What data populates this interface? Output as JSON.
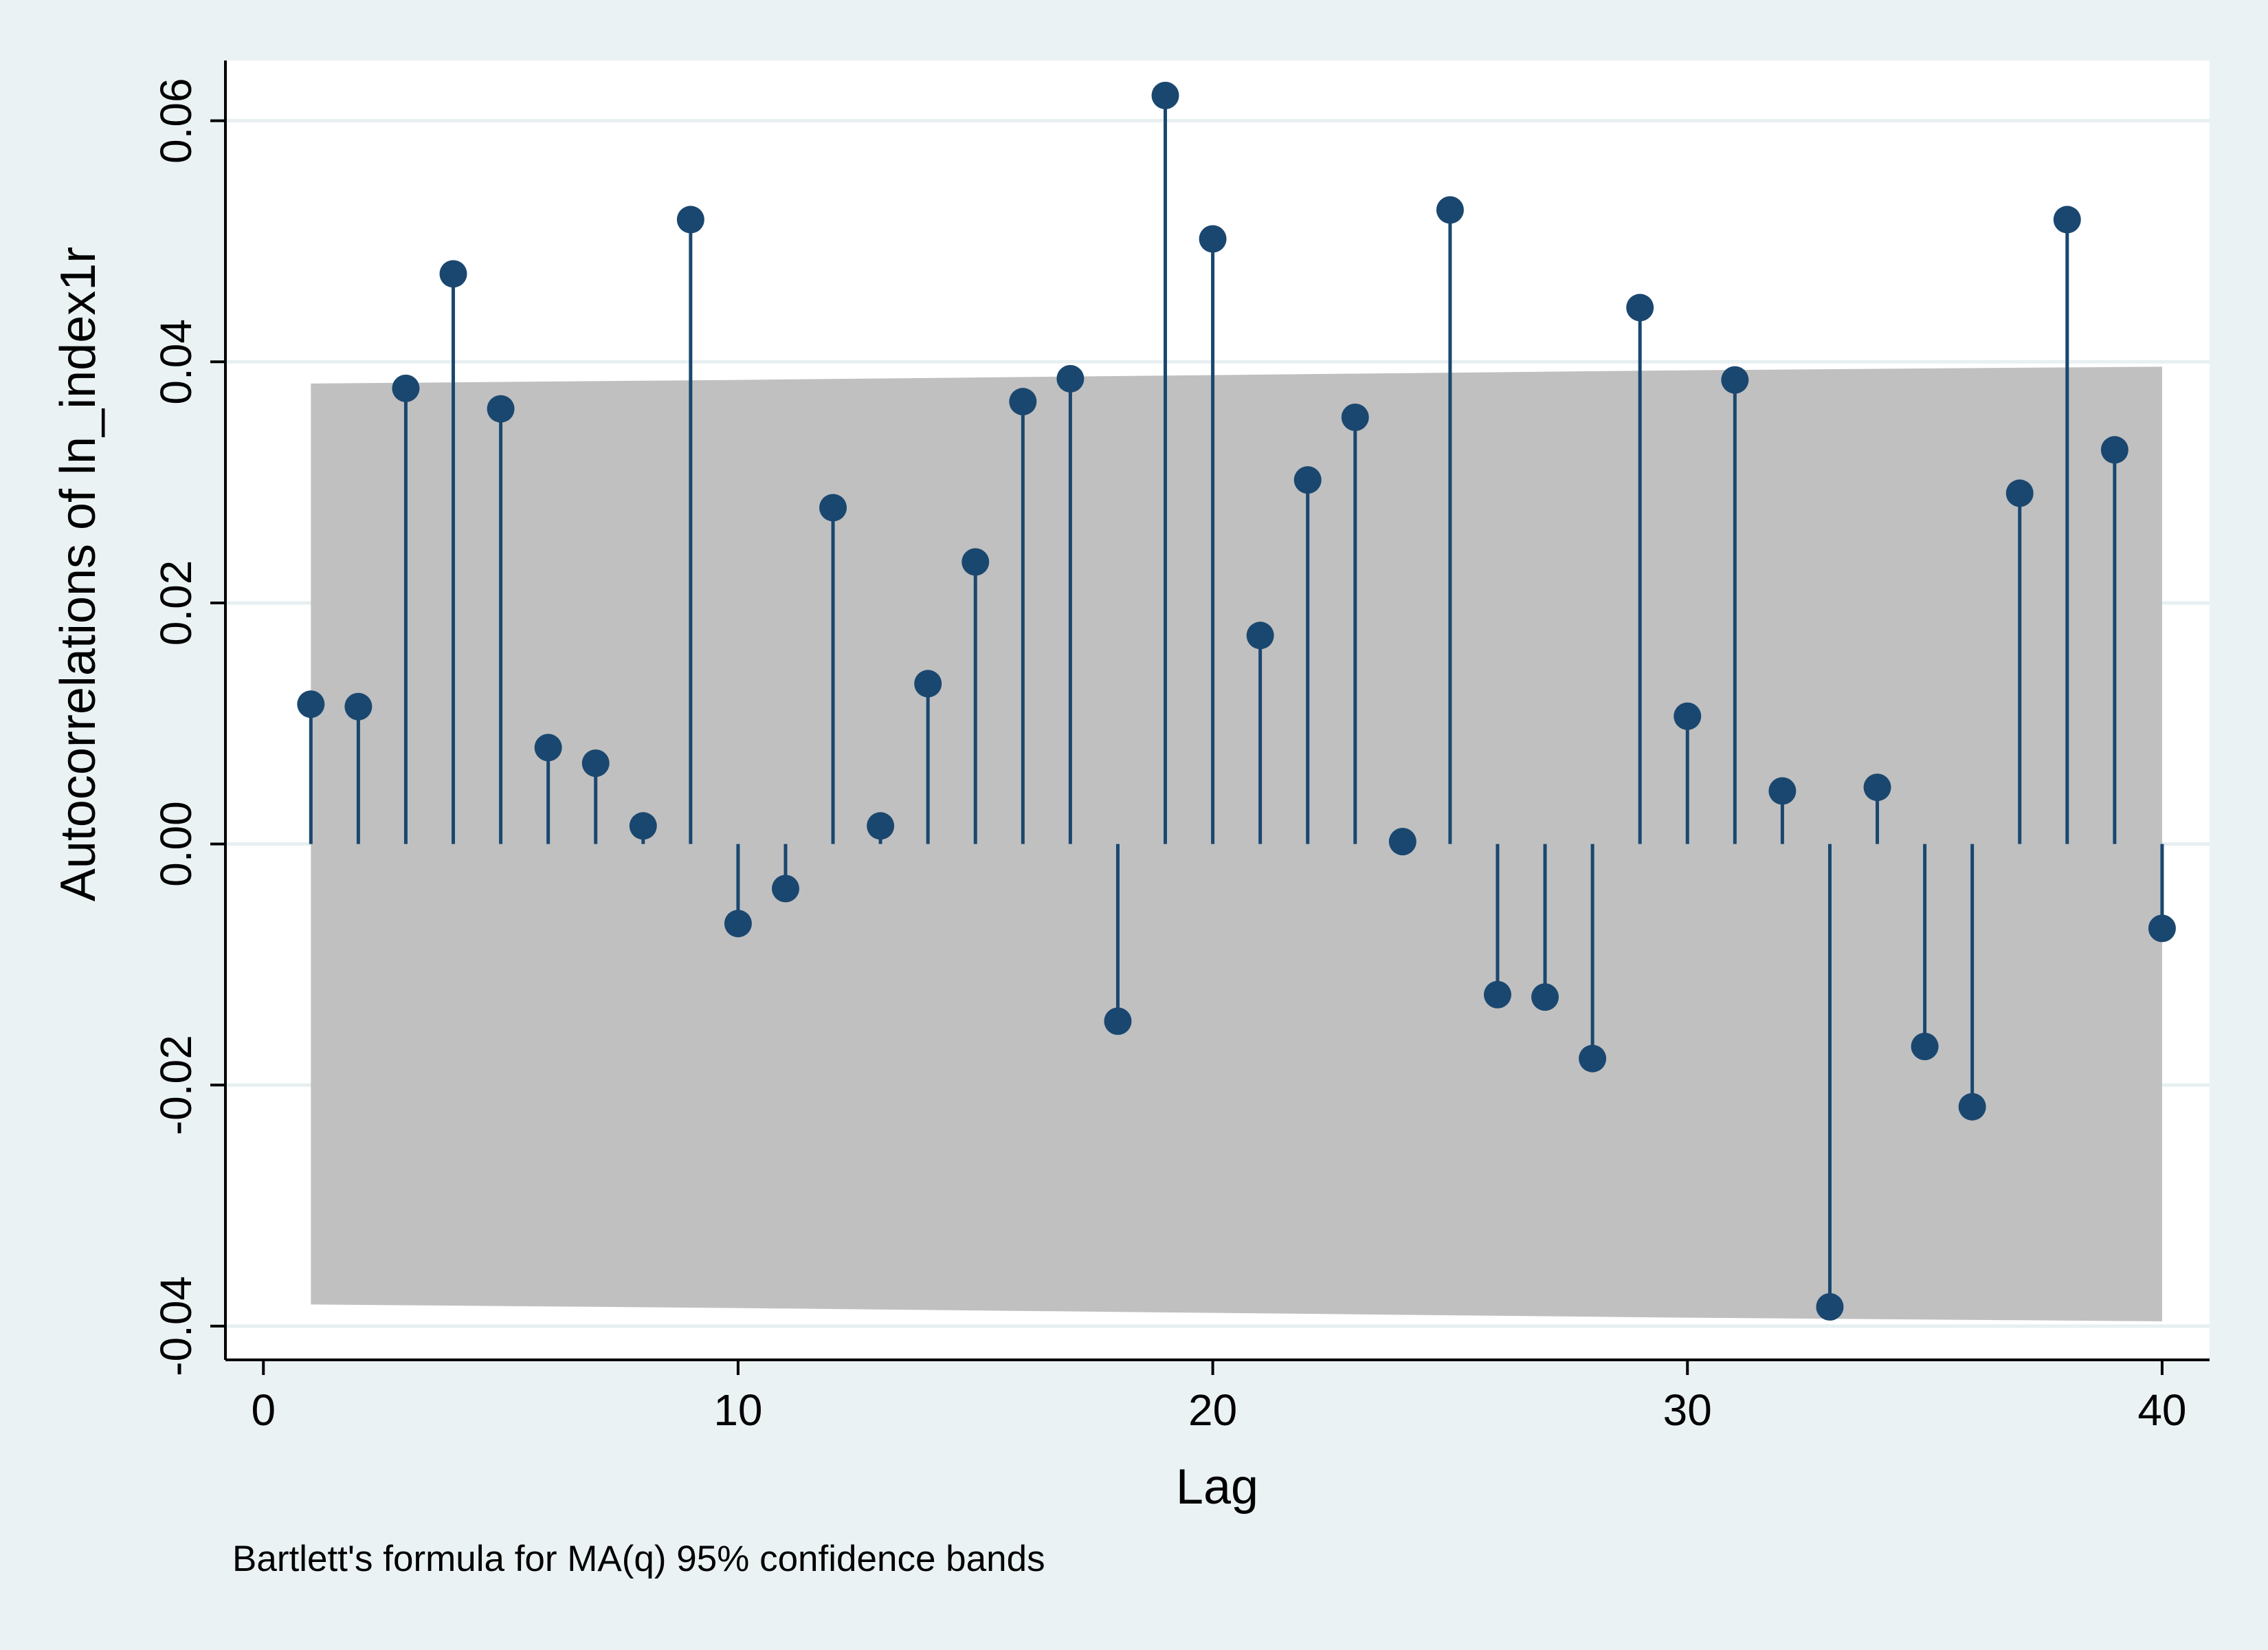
{
  "colors": {
    "background": "#eaf2f3",
    "plot_background": "#ffffff",
    "gridline": "#e7eff1",
    "band": "#c0c0c0",
    "marker": "#1a476f",
    "axis": "#000000"
  },
  "chart_data": {
    "type": "scatter",
    "style": "spike-plot (stems from zero with circular markers)",
    "xlabel": "Lag",
    "ylabel": "Autocorrelations of ln_index1r",
    "note": "Bartlett's formula for MA(q) 95% confidence bands",
    "xlim": [
      -0.8,
      41
    ],
    "ylim": [
      -0.0428,
      0.065
    ],
    "xticks": [
      0,
      10,
      20,
      30,
      40
    ],
    "xtick_labels": [
      "0",
      "10",
      "20",
      "30",
      "40"
    ],
    "yticks": [
      -0.04,
      -0.02,
      0.0,
      0.02,
      0.04,
      0.06
    ],
    "ytick_labels": [
      "-0.04",
      "-0.02",
      "0.00",
      "0.02",
      "0.04",
      "0.06"
    ],
    "grid": true,
    "series": [
      {
        "x": [
          1,
          2,
          3,
          4,
          5,
          6,
          7,
          8,
          9,
          10,
          11,
          12,
          13,
          14,
          15,
          16,
          17,
          18,
          19,
          20,
          21,
          22,
          23,
          24,
          25,
          26,
          27,
          28,
          29,
          30,
          31,
          32,
          33,
          34,
          35,
          36,
          37,
          38,
          39,
          40
        ],
        "values": [
          0.0116,
          0.0114,
          0.0378,
          0.0473,
          0.0361,
          0.008,
          0.0067,
          0.0015,
          0.0518,
          -0.0066,
          -0.0037,
          0.0279,
          0.0015,
          0.0133,
          0.0234,
          0.0367,
          0.0386,
          -0.0147,
          0.0621,
          0.0502,
          0.0173,
          0.0302,
          0.0354,
          0.0002,
          0.0526,
          -0.0125,
          -0.0127,
          -0.0178,
          0.0445,
          0.0106,
          0.0385,
          0.0044,
          -0.0384,
          0.0047,
          -0.0168,
          -0.0218,
          0.0291,
          0.0518,
          0.0327,
          -0.007
        ]
      }
    ],
    "confidence_band": {
      "x": [
        1,
        10,
        20,
        30,
        40
      ],
      "upper": [
        0.0382,
        0.0385,
        0.0389,
        0.0393,
        0.0396
      ],
      "lower": [
        -0.0382,
        -0.0385,
        -0.0389,
        -0.0393,
        -0.0396
      ]
    }
  }
}
